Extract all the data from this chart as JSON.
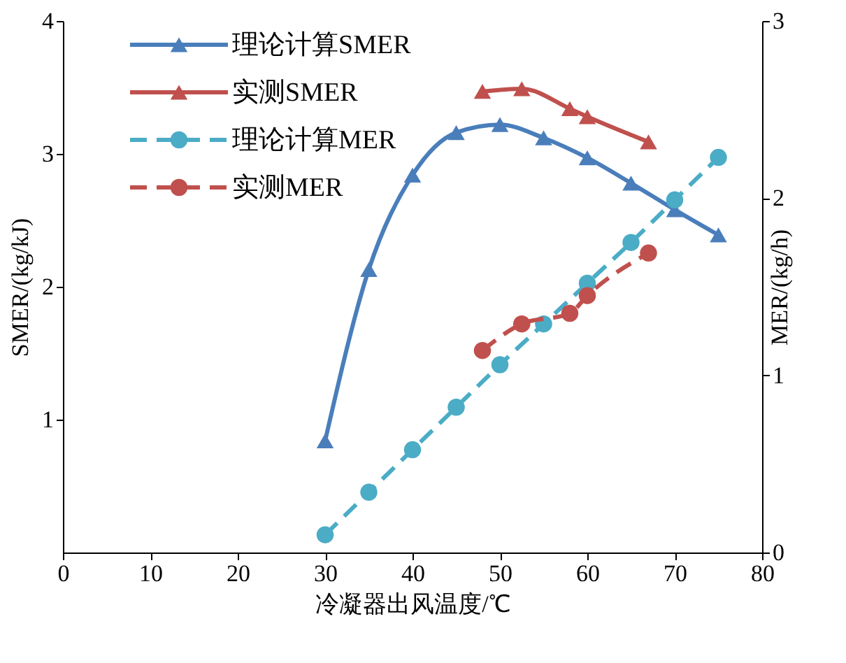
{
  "chart_data": {
    "type": "line",
    "xlabel": "冷凝器出风温度/℃",
    "ylabel": "SMER/(kg/kJ)",
    "y2label": "MER/(kg/h)",
    "xlim": [
      0,
      80
    ],
    "xticks": [
      0,
      10,
      20,
      30,
      40,
      50,
      60,
      70,
      80
    ],
    "ylim": [
      0,
      4
    ],
    "yticks": [
      1,
      2,
      3,
      4
    ],
    "y2lim": [
      0,
      3
    ],
    "y2ticks": [
      0,
      1,
      2,
      3
    ],
    "grid": false,
    "legend": "top left",
    "series": [
      {
        "name": "理论计算SMER",
        "color": "#4a7ebb",
        "marker": "triangle",
        "line_style": "solid",
        "x": [
          30,
          35,
          40,
          45,
          50,
          55,
          60,
          65,
          70,
          75
        ],
        "values": [
          0.84,
          2.13,
          2.84,
          3.16,
          3.22,
          3.12,
          2.97,
          2.78,
          2.58,
          2.39
        ]
      },
      {
        "name": "实测SMER",
        "color": "#c0504d",
        "marker": "triangle",
        "line_style": "solid",
        "x": [
          48,
          52.5,
          58,
          60,
          67
        ],
        "values": [
          3.47,
          3.49,
          3.34,
          3.28,
          3.09
        ]
      },
      {
        "name": "理论计算MER",
        "axis": "y2",
        "color": "#4bacc6",
        "marker": "circle",
        "line_style": "dashed",
        "x": [
          30,
          35,
          40,
          45,
          50,
          55,
          60,
          65,
          70,
          75
        ],
        "values": [
          0.1,
          0.34,
          0.58,
          0.82,
          1.06,
          1.29,
          1.52,
          1.75,
          1.99,
          2.23
        ]
      },
      {
        "name": "实测MER",
        "axis": "y2",
        "color": "#c0504d",
        "marker": "circle",
        "line_style": "dashed",
        "x": [
          48,
          52.5,
          58,
          60,
          67
        ],
        "values": [
          1.14,
          1.29,
          1.35,
          1.45,
          1.69
        ]
      }
    ]
  }
}
